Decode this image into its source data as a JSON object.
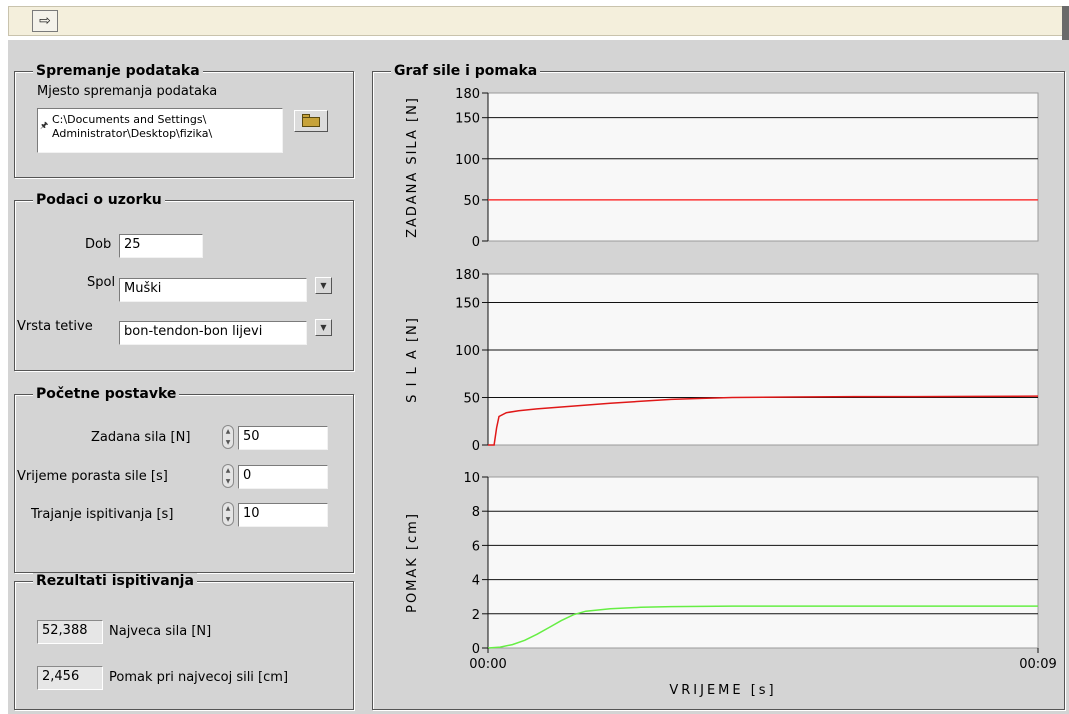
{
  "toolbar": {
    "run_icon": "right-arrow-icon",
    "run_glyph": "⇨"
  },
  "storage": {
    "title": "Spremanje podataka",
    "path_label": "Mjesto spremanja podataka",
    "path_line1": "C:\\Documents and Settings\\",
    "path_line2": "Administrator\\Desktop\\fizika\\",
    "browse_icon": "folder-icon"
  },
  "sample": {
    "title": "Podaci o uzorku",
    "age_label": "Dob",
    "age_value": "25",
    "sex_label": "Spol",
    "sex_value": "Muški",
    "tendon_label": "Vrsta tetive",
    "tendon_value": "bon-tendon-bon lijevi",
    "dropdown_glyph": "▼"
  },
  "settings": {
    "title": "Početne postavke",
    "force_label": "Zadana sila [N]",
    "force_value": "50",
    "rise_label": "Vrijeme porasta sile [s]",
    "rise_value": "0",
    "duration_label": "Trajanje ispitivanja [s]",
    "duration_value": "10",
    "spin_up_glyph": "▲",
    "spin_down_glyph": "▼"
  },
  "results": {
    "title": "Rezultati ispitivanja",
    "max_force_value": "52,388",
    "max_force_label": "Najveca sila [N]",
    "disp_value": "2,456",
    "disp_label": "Pomak pri najvecoj sili [cm]"
  },
  "chart_group": {
    "title": "Graf sile i pomaka"
  },
  "colors": {
    "panel": "#d4d4d4",
    "plot_bg": "#f8f8f8",
    "set_force": "#ff3b3b",
    "measured_force": "#e01818",
    "displacement": "#66ee44"
  },
  "chart_data": [
    {
      "type": "line",
      "ylabel": "ZADANA SILA [N]",
      "ylim": [
        0,
        180
      ],
      "yticks": [
        "0",
        "50",
        "100",
        "150",
        "180"
      ],
      "xlim": [
        0,
        9
      ],
      "grid": true,
      "series": [
        {
          "x": [
            0,
            9
          ],
          "y": [
            50,
            50
          ]
        }
      ]
    },
    {
      "type": "line",
      "ylabel": "S I L A [N]",
      "ylim": [
        0,
        180
      ],
      "yticks": [
        "0",
        "50",
        "100",
        "150",
        "180"
      ],
      "xlim": [
        0,
        9
      ],
      "grid": true,
      "series": [
        {
          "x": [
            0,
            0.1,
            0.14,
            0.18,
            0.3,
            0.5,
            0.8,
            1.2,
            1.6,
            2.0,
            2.5,
            3.0,
            3.5,
            4.0,
            5.0,
            6.0,
            7.0,
            8.0,
            9.0
          ],
          "y": [
            0,
            0,
            18,
            30,
            34,
            36,
            38,
            40,
            42,
            44,
            46,
            48,
            49,
            50,
            50.5,
            51,
            51,
            51.2,
            51.5
          ]
        }
      ]
    },
    {
      "type": "line",
      "ylabel": "POMAK [cm]",
      "ylim": [
        0,
        10
      ],
      "yticks": [
        "0",
        "2",
        "4",
        "6",
        "8",
        "10"
      ],
      "xlim": [
        0,
        9
      ],
      "xticks": [
        "00:00",
        "00:09"
      ],
      "xlabel": "VRIJEME  [s]",
      "grid": true,
      "series": [
        {
          "x": [
            0,
            0.2,
            0.4,
            0.6,
            0.8,
            1.0,
            1.2,
            1.4,
            1.6,
            2.0,
            2.5,
            3.0,
            4.0,
            5.0,
            6.0,
            7.0,
            8.0,
            9.0
          ],
          "y": [
            0,
            0.05,
            0.2,
            0.45,
            0.8,
            1.2,
            1.6,
            1.95,
            2.15,
            2.3,
            2.38,
            2.42,
            2.45,
            2.45,
            2.45,
            2.45,
            2.45,
            2.45
          ]
        }
      ]
    }
  ]
}
